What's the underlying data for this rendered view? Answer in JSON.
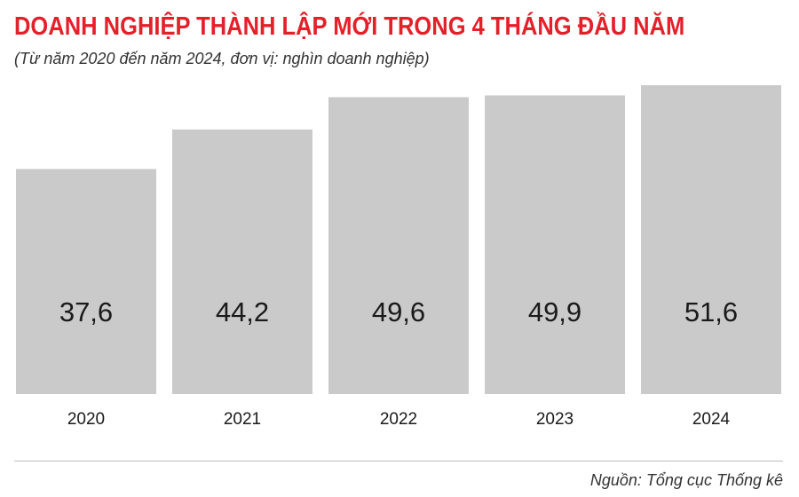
{
  "colors": {
    "title": "#e4202a",
    "bar": "#cbcacb",
    "text": "#1a1a1a"
  },
  "chart_data": {
    "type": "bar",
    "title": "DOANH NGHIỆP THÀNH LẬP MỚI TRONG 4 THÁNG ĐẦU NĂM",
    "subtitle": "(Từ năm 2020 đến năm 2024, đơn vị: nghìn doanh nghiệp)",
    "categories": [
      "2020",
      "2021",
      "2022",
      "2023",
      "2024"
    ],
    "values": [
      37.6,
      44.2,
      49.6,
      49.9,
      51.6
    ],
    "value_labels": [
      "37,6",
      "44,2",
      "49,6",
      "49,9",
      "51,6"
    ],
    "xlabel": "",
    "ylabel": "",
    "ylim": [
      0,
      51.6
    ],
    "grid": false,
    "legend": "none",
    "source": "Nguồn: Tổng cục Thống kê"
  }
}
